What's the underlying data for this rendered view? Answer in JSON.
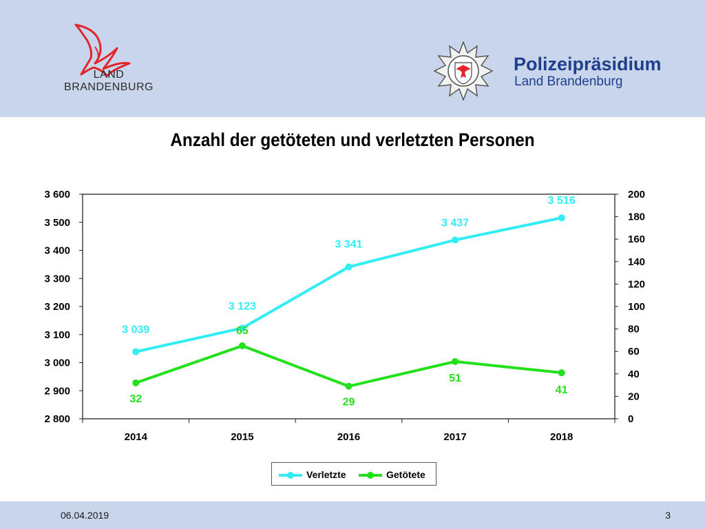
{
  "header": {
    "left_logo_line1": "LAND",
    "left_logo_line2": "BRANDENBURG",
    "police_title": "Polizeipräsidium",
    "police_subtitle": "Land Brandenburg"
  },
  "colors": {
    "header_bg": "#c9d5ea",
    "verletzte": "#33ecf4",
    "getoetete": "#22e01a",
    "police_blue": "#1f3f8c",
    "logo_red": "#e3242b"
  },
  "chart_data": {
    "type": "line",
    "title": "Anzahl der getöteten und verletzten Personen",
    "categories": [
      "2014",
      "2015",
      "2016",
      "2017",
      "2018"
    ],
    "series": [
      {
        "name": "Verletzte",
        "axis": "left",
        "values": [
          3039,
          3123,
          3341,
          3437,
          3516
        ],
        "labels": [
          "3 039",
          "3 123",
          "3 341",
          "3 437",
          "3 516"
        ],
        "color": "#33ecf4"
      },
      {
        "name": "Getötete",
        "axis": "right",
        "values": [
          32,
          65,
          29,
          51,
          41
        ],
        "labels": [
          "32",
          "65",
          "29",
          "51",
          "41"
        ],
        "color": "#22e01a"
      }
    ],
    "y_left": {
      "min": 2800,
      "max": 3600,
      "ticks": [
        2800,
        2900,
        3000,
        3100,
        3200,
        3300,
        3400,
        3500,
        3600
      ],
      "tick_labels": [
        "2 800",
        "2 900",
        "3 000",
        "3 100",
        "3 200",
        "3 300",
        "3 400",
        "3 500",
        "3 600"
      ]
    },
    "y_right": {
      "min": 0,
      "max": 200,
      "ticks": [
        0,
        20,
        40,
        60,
        80,
        100,
        120,
        140,
        160,
        180,
        200
      ],
      "tick_labels": [
        "0",
        "20",
        "40",
        "60",
        "80",
        "100",
        "120",
        "140",
        "160",
        "180",
        "200"
      ]
    },
    "grid": false,
    "legend_position": "bottom-center"
  },
  "footer": {
    "date": "06.04.2019",
    "page": "3"
  }
}
